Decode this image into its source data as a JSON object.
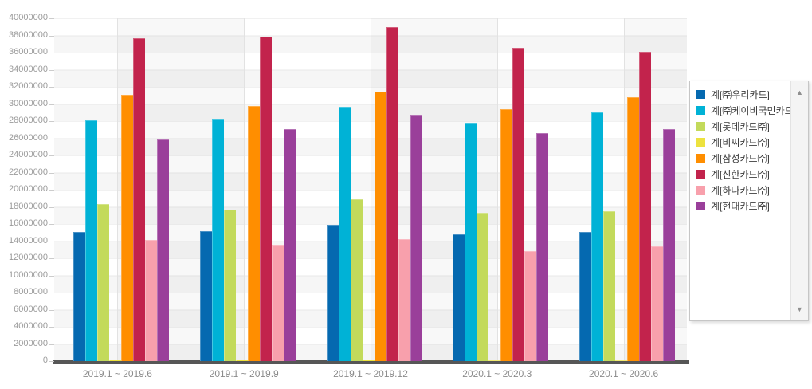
{
  "chart_data": {
    "type": "bar",
    "title": "",
    "xlabel": "",
    "ylabel": "",
    "categories": [
      "2019.1 ~ 2019.6",
      "2019.1 ~ 2019.9",
      "2019.1 ~ 2019.12",
      "2020.1 ~ 2020.3",
      "2020.1 ~ 2020.6"
    ],
    "series": [
      {
        "name": "계[㈜우리카드]",
        "color": "#0569B0",
        "values": [
          15100000,
          15200000,
          15900000,
          14800000,
          15100000
        ]
      },
      {
        "name": "계[㈜케이비국민카드]",
        "color": "#00B2D6",
        "values": [
          28100000,
          28300000,
          29700000,
          27800000,
          29000000
        ]
      },
      {
        "name": "계[롯데카드㈜]",
        "color": "#C3DA5B",
        "values": [
          18300000,
          17700000,
          18900000,
          17300000,
          17500000
        ]
      },
      {
        "name": "계[비씨카드㈜]",
        "color": "#EDE23E",
        "values": [
          200000,
          150000,
          150000,
          100000,
          100000
        ]
      },
      {
        "name": "계[삼성카드㈜]",
        "color": "#FF8E00",
        "values": [
          31100000,
          29800000,
          31400000,
          29400000,
          30800000
        ]
      },
      {
        "name": "계[신한카드㈜]",
        "color": "#C2234C",
        "values": [
          37700000,
          37900000,
          39000000,
          36600000,
          36100000
        ]
      },
      {
        "name": "계[하나카드㈜]",
        "color": "#F8A0AC",
        "values": [
          14100000,
          13600000,
          14200000,
          12800000,
          13400000
        ]
      },
      {
        "name": "계[현대카드㈜]",
        "color": "#9A3F9A",
        "values": [
          25900000,
          27100000,
          28700000,
          26600000,
          27100000
        ]
      }
    ],
    "ylim": [
      0,
      40000000
    ],
    "ytick_step": 2000000,
    "yticks": [
      40000000,
      38000000,
      36000000,
      34000000,
      32000000,
      30000000,
      28000000,
      26000000,
      24000000,
      22000000,
      20000000,
      18000000,
      16000000,
      14000000,
      12000000,
      10000000,
      8000000,
      6000000,
      4000000,
      2000000,
      0
    ],
    "grid": true,
    "legend_position": "right"
  },
  "legend": {
    "scroll_up_icon": "▲",
    "scroll_down_icon": "▼"
  }
}
